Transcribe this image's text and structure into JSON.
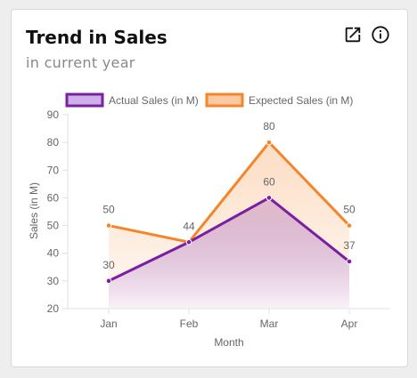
{
  "card": {
    "title": "Trend in Sales",
    "subtitle": "in current year",
    "icons": [
      "open-in-new-icon",
      "info-icon"
    ]
  },
  "colors": {
    "actual": "#7b1fa2",
    "expected": "#f5852a"
  },
  "chart_data": {
    "type": "line",
    "categories": [
      "Jan",
      "Feb",
      "Mar",
      "Apr"
    ],
    "series": [
      {
        "name": "Actual Sales (in M)",
        "values": [
          30,
          44,
          60,
          37
        ]
      },
      {
        "name": "Expected Sales (in M)",
        "values": [
          50,
          44,
          80,
          50
        ]
      }
    ],
    "data_labels": {
      "actual": [
        "30",
        "44",
        "60",
        "37"
      ],
      "expected": [
        "50",
        "",
        "80",
        "50"
      ]
    },
    "xlabel": "Month",
    "ylabel": "Sales (in M)",
    "ylim": [
      20,
      90
    ],
    "yticks": [
      "20",
      "30",
      "40",
      "50",
      "60",
      "70",
      "80",
      "90"
    ],
    "grid": false,
    "area_fill": true,
    "legend": "top-center"
  }
}
